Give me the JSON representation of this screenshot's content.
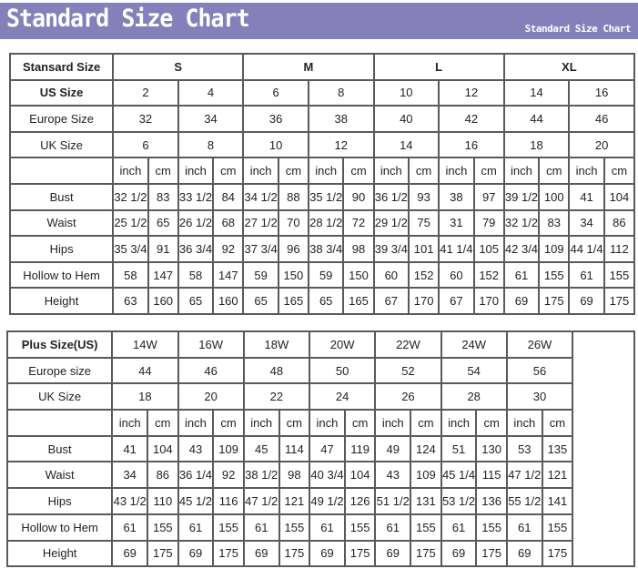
{
  "banner": {
    "title": "Standard Size Chart",
    "subtitle": "Standard Size Chart",
    "color": "#8580b9"
  },
  "standard": {
    "header_label": "Stansard Size",
    "groups": [
      "S",
      "M",
      "L",
      "XL"
    ],
    "us_label": "US Size",
    "us": [
      "2",
      "4",
      "6",
      "8",
      "10",
      "12",
      "14",
      "16"
    ],
    "europe_label": "Europe Size",
    "europe": [
      "32",
      "34",
      "36",
      "38",
      "40",
      "42",
      "44",
      "46"
    ],
    "uk_label": "UK Size",
    "uk": [
      "6",
      "8",
      "10",
      "12",
      "14",
      "16",
      "18",
      "20"
    ],
    "units": [
      "inch",
      "cm"
    ],
    "rows": [
      {
        "label": "Bust",
        "values": [
          "32 1/2",
          "83",
          "33 1/2",
          "84",
          "34 1/2",
          "88",
          "35 1/2",
          "90",
          "36 1/2",
          "93",
          "38",
          "97",
          "39 1/2",
          "100",
          "41",
          "104"
        ]
      },
      {
        "label": "Waist",
        "values": [
          "25 1/2",
          "65",
          "26 1/2",
          "68",
          "27 1/2",
          "70",
          "28 1/2",
          "72",
          "29 1/2",
          "75",
          "31",
          "79",
          "32 1/2",
          "83",
          "34",
          "86"
        ]
      },
      {
        "label": "Hips",
        "values": [
          "35 3/4",
          "91",
          "36 3/4",
          "92",
          "37 3/4",
          "96",
          "38 3/4",
          "98",
          "39 3/4",
          "101",
          "41 1/4",
          "105",
          "42 3/4",
          "109",
          "44 1/4",
          "112"
        ]
      },
      {
        "label": "Hollow to Hem",
        "values": [
          "58",
          "147",
          "58",
          "147",
          "59",
          "150",
          "59",
          "150",
          "60",
          "152",
          "60",
          "152",
          "61",
          "155",
          "61",
          "155"
        ]
      },
      {
        "label": "Height",
        "values": [
          "63",
          "160",
          "65",
          "160",
          "65",
          "165",
          "65",
          "165",
          "67",
          "170",
          "67",
          "170",
          "69",
          "175",
          "69",
          "175"
        ]
      }
    ]
  },
  "plus": {
    "header_label": "Plus Size(US)",
    "us": [
      "14W",
      "16W",
      "18W",
      "20W",
      "22W",
      "24W",
      "26W"
    ],
    "europe_label": "Europe size",
    "europe": [
      "44",
      "46",
      "48",
      "50",
      "52",
      "54",
      "56"
    ],
    "uk_label": "UK Size",
    "uk": [
      "18",
      "20",
      "22",
      "24",
      "26",
      "28",
      "30"
    ],
    "units": [
      "inch",
      "cm"
    ],
    "rows": [
      {
        "label": "Bust",
        "values": [
          "41",
          "104",
          "43",
          "109",
          "45",
          "114",
          "47",
          "119",
          "49",
          "124",
          "51",
          "130",
          "53",
          "135"
        ]
      },
      {
        "label": "Waist",
        "values": [
          "34",
          "86",
          "36 1/4",
          "92",
          "38 1/2",
          "98",
          "40 3/4",
          "104",
          "43",
          "109",
          "45 1/4",
          "115",
          "47 1/2",
          "121"
        ]
      },
      {
        "label": "Hips",
        "values": [
          "43 1/2",
          "110",
          "45 1/2",
          "116",
          "47 1/2",
          "121",
          "49 1/2",
          "126",
          "51 1/2",
          "131",
          "53 1/2",
          "136",
          "55 1/2",
          "141"
        ]
      },
      {
        "label": "Hollow to Hem",
        "values": [
          "61",
          "155",
          "61",
          "155",
          "61",
          "155",
          "61",
          "155",
          "61",
          "155",
          "61",
          "155",
          "61",
          "155"
        ]
      },
      {
        "label": "Height",
        "values": [
          "69",
          "175",
          "69",
          "175",
          "69",
          "175",
          "69",
          "175",
          "69",
          "175",
          "69",
          "175",
          "69",
          "175"
        ]
      }
    ]
  }
}
